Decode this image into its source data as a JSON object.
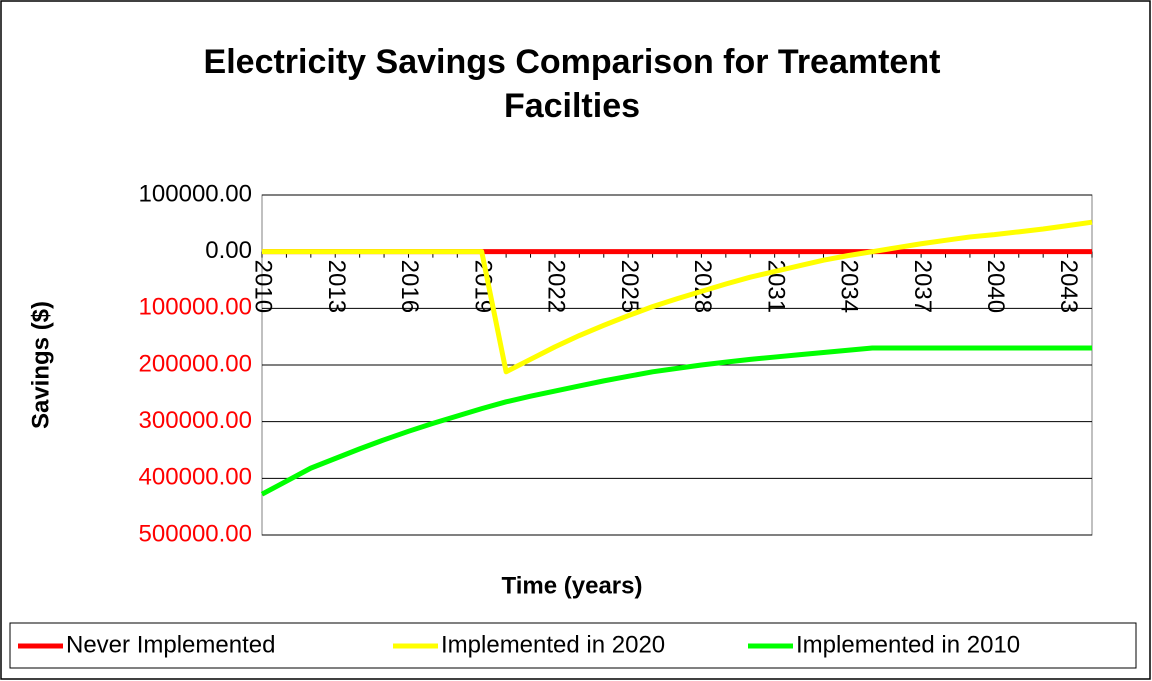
{
  "chart_data": {
    "type": "line",
    "title": "Electricity Savings Comparison for Treamtent Facilties",
    "xlabel": "Time (years)",
    "ylabel": "Savings ($)",
    "categories": [
      "2010",
      null,
      null,
      "2013",
      null,
      null,
      "2016",
      null,
      null,
      "2019",
      null,
      null,
      "2022",
      null,
      null,
      "2025",
      null,
      null,
      "2028",
      null,
      null,
      "2031",
      null,
      null,
      "2034",
      null,
      null,
      "2037",
      null,
      null,
      "2040",
      null,
      null,
      "2043",
      null
    ],
    "series": [
      {
        "name": "Never Implemented",
        "color": "#ff0000",
        "values": [
          0,
          0,
          0,
          0,
          0,
          0,
          0,
          0,
          0,
          0,
          0,
          0,
          0,
          0,
          0,
          0,
          0,
          0,
          0,
          0,
          0,
          0,
          0,
          0,
          0,
          0,
          0,
          0,
          0,
          0,
          0,
          0,
          0,
          0,
          0
        ]
      },
      {
        "name": "Implemented in 2020",
        "color": "#ffff00",
        "values": [
          0,
          0,
          0,
          0,
          0,
          0,
          0,
          0,
          0,
          0,
          -212000,
          -190000,
          -168000,
          -148000,
          -130000,
          -113000,
          -97000,
          -83000,
          -70000,
          -57000,
          -45000,
          -35000,
          -25000,
          -15000,
          -7000,
          0,
          7000,
          14000,
          20000,
          26000,
          30000,
          35000,
          40000,
          46000,
          52000
        ]
      },
      {
        "name": "Implemented in 2010",
        "color": "#00ff00",
        "values": [
          -428000,
          -405000,
          -382000,
          -365000,
          -348000,
          -332000,
          -317000,
          -303000,
          -290000,
          -277000,
          -265000,
          -255000,
          -246000,
          -237000,
          -228000,
          -220000,
          -212000,
          -206000,
          -200000,
          -195000,
          -190000,
          -186000,
          -182000,
          -178000,
          -174000,
          -170000,
          -170000,
          -170000,
          -170000,
          -170000,
          -170000,
          -170000,
          -170000,
          -170000,
          -170000
        ]
      }
    ],
    "ylim": [
      -500000,
      100000
    ],
    "yticks": [
      {
        "value": 100000,
        "label": "100000.00"
      },
      {
        "value": 0,
        "label": "0.00"
      },
      {
        "value": -100000,
        "label": "100000.00"
      },
      {
        "value": -200000,
        "label": "200000.00"
      },
      {
        "value": -300000,
        "label": "300000.00"
      },
      {
        "value": -400000,
        "label": "400000.00"
      },
      {
        "value": -500000,
        "label": "500000.00"
      }
    ],
    "negative_tick_color": "#ff0000",
    "grid": true,
    "legend": "bottom"
  }
}
